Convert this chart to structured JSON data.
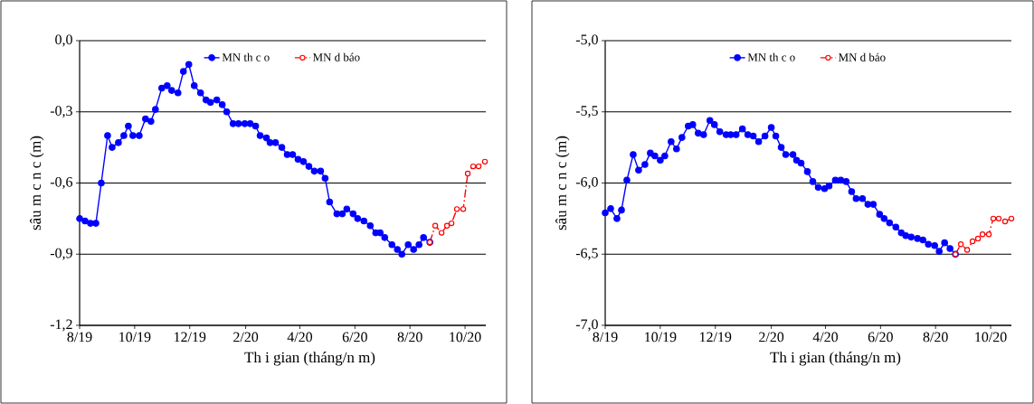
{
  "chart_data": [
    {
      "type": "line",
      "xlabel": "Th i gian (tháng/n m)",
      "ylabel": "sâu m c n c (m)",
      "xlim": [
        "2019-08-01",
        "2020-10-24"
      ],
      "ylim": [
        -1.2,
        0
      ],
      "xticks": [
        {
          "value": "2019-08-01",
          "label": "8/19"
        },
        {
          "value": "2019-10-01",
          "label": "10/19"
        },
        {
          "value": "2019-12-01",
          "label": "12/19"
        },
        {
          "value": "2020-02-01",
          "label": "2/20"
        },
        {
          "value": "2020-04-01",
          "label": "4/20"
        },
        {
          "value": "2020-06-01",
          "label": "6/20"
        },
        {
          "value": "2020-08-01",
          "label": "8/20"
        },
        {
          "value": "2020-10-01",
          "label": "10/20"
        }
      ],
      "yticks": [
        {
          "value": -1.2,
          "label": "-1,2"
        },
        {
          "value": -0.9,
          "label": "-0,9"
        },
        {
          "value": -0.6,
          "label": "-0,6"
        },
        {
          "value": -0.3,
          "label": "-0,3"
        },
        {
          "value": 0,
          "label": "0,0"
        }
      ],
      "grid": "y",
      "legend": "top",
      "marker": "circle",
      "series": [
        {
          "name": "MN th c o",
          "color": "#0000ff",
          "line_style": "solid",
          "x": [
            "2019-08-01",
            "2019-08-07",
            "2019-08-13",
            "2019-08-19",
            "2019-08-25",
            "2019-09-01",
            "2019-09-06",
            "2019-09-13",
            "2019-09-19",
            "2019-09-24",
            "2019-09-29",
            "2019-10-06",
            "2019-10-13",
            "2019-10-19",
            "2019-10-24",
            "2019-10-31",
            "2019-11-06",
            "2019-11-11",
            "2019-11-18",
            "2019-11-24",
            "2019-11-30",
            "2019-12-06",
            "2019-12-13",
            "2019-12-19",
            "2019-12-24",
            "2019-12-31",
            "2020-01-06",
            "2020-01-11",
            "2020-01-18",
            "2020-01-24",
            "2020-01-31",
            "2020-02-06",
            "2020-02-12",
            "2020-02-17",
            "2020-02-24",
            "2020-02-28",
            "2020-03-05",
            "2020-03-12",
            "2020-03-18",
            "2020-03-24",
            "2020-03-30",
            "2020-04-05",
            "2020-04-11",
            "2020-04-17",
            "2020-04-24",
            "2020-04-29",
            "2020-05-04",
            "2020-05-12",
            "2020-05-18",
            "2020-05-23",
            "2020-05-30",
            "2020-06-04",
            "2020-06-11",
            "2020-06-18",
            "2020-06-24",
            "2020-06-29",
            "2020-07-04",
            "2020-07-12",
            "2020-07-18",
            "2020-07-23",
            "2020-07-30",
            "2020-08-05",
            "2020-08-11",
            "2020-08-16",
            "2020-08-23"
          ],
          "values": [
            -0.75,
            -0.76,
            -0.77,
            -0.77,
            -0.6,
            -0.4,
            -0.45,
            -0.43,
            -0.4,
            -0.36,
            -0.4,
            -0.4,
            -0.33,
            -0.34,
            -0.29,
            -0.2,
            -0.19,
            -0.21,
            -0.22,
            -0.13,
            -0.1,
            -0.19,
            -0.22,
            -0.25,
            -0.26,
            -0.25,
            -0.27,
            -0.3,
            -0.35,
            -0.35,
            -0.35,
            -0.35,
            -0.36,
            -0.4,
            -0.41,
            -0.43,
            -0.43,
            -0.45,
            -0.48,
            -0.48,
            -0.5,
            -0.51,
            -0.53,
            -0.55,
            -0.55,
            -0.58,
            -0.68,
            -0.73,
            -0.73,
            -0.71,
            -0.73,
            -0.75,
            -0.76,
            -0.78,
            -0.81,
            -0.81,
            -0.83,
            -0.86,
            -0.88,
            -0.9,
            -0.86,
            -0.88,
            -0.86,
            -0.83,
            -0.85
          ]
        },
        {
          "name": "MN d báo",
          "color": "#ff0000",
          "line_style": "dashed",
          "x": [
            "2020-08-23",
            "2020-08-29",
            "2020-09-05",
            "2020-09-11",
            "2020-09-16",
            "2020-09-22",
            "2020-09-29",
            "2020-10-04",
            "2020-10-10",
            "2020-10-16",
            "2020-10-23"
          ],
          "values": [
            -0.85,
            -0.78,
            -0.81,
            -0.78,
            -0.77,
            -0.71,
            -0.71,
            -0.56,
            -0.53,
            -0.53,
            -0.51
          ]
        }
      ]
    },
    {
      "type": "line",
      "xlabel": "Th i gian (tháng/n m)",
      "ylabel": "sâu m c n c (m)",
      "xlim": [
        "2019-08-01",
        "2020-10-24"
      ],
      "ylim": [
        -7,
        -5
      ],
      "xticks": [
        {
          "value": "2019-08-01",
          "label": "8/19"
        },
        {
          "value": "2019-10-01",
          "label": "10/19"
        },
        {
          "value": "2019-12-01",
          "label": "12/19"
        },
        {
          "value": "2020-02-01",
          "label": "2/20"
        },
        {
          "value": "2020-04-01",
          "label": "4/20"
        },
        {
          "value": "2020-06-01",
          "label": "6/20"
        },
        {
          "value": "2020-08-01",
          "label": "8/20"
        },
        {
          "value": "2020-10-01",
          "label": "10/20"
        }
      ],
      "yticks": [
        {
          "value": -7,
          "label": "-7,0"
        },
        {
          "value": -6.5,
          "label": "-6,5"
        },
        {
          "value": -6,
          "label": "-6,0"
        },
        {
          "value": -5.5,
          "label": "-5,5"
        },
        {
          "value": -5,
          "label": "-5,0"
        }
      ],
      "grid": "y",
      "legend": "top",
      "marker": "circle",
      "series": [
        {
          "name": "MN th c o",
          "color": "#0000ff",
          "line_style": "solid",
          "x": [
            "2019-08-01",
            "2019-08-07",
            "2019-08-14",
            "2019-08-19",
            "2019-08-25",
            "2019-09-01",
            "2019-09-07",
            "2019-09-14",
            "2019-09-20",
            "2019-09-25",
            "2019-10-01",
            "2019-10-06",
            "2019-10-13",
            "2019-10-19",
            "2019-10-25",
            "2019-11-01",
            "2019-11-06",
            "2019-11-12",
            "2019-11-18",
            "2019-11-25",
            "2019-11-30",
            "2019-12-06",
            "2019-12-13",
            "2019-12-18",
            "2019-12-24",
            "2019-12-31",
            "2020-01-06",
            "2020-01-12",
            "2020-01-18",
            "2020-01-25",
            "2020-02-01",
            "2020-02-06",
            "2020-02-12",
            "2020-02-17",
            "2020-02-25",
            "2020-02-29",
            "2020-03-05",
            "2020-03-12",
            "2020-03-18",
            "2020-03-24",
            "2020-03-31",
            "2020-04-05",
            "2020-04-12",
            "2020-04-18",
            "2020-04-24",
            "2020-04-30",
            "2020-05-05",
            "2020-05-12",
            "2020-05-18",
            "2020-05-24",
            "2020-05-31",
            "2020-06-05",
            "2020-06-11",
            "2020-06-18",
            "2020-06-24",
            "2020-06-29",
            "2020-07-05",
            "2020-07-12",
            "2020-07-18",
            "2020-07-24",
            "2020-07-31",
            "2020-08-05",
            "2020-08-11",
            "2020-08-17",
            "2020-08-23"
          ],
          "values": [
            -6.21,
            -6.18,
            -6.25,
            -6.19,
            -5.98,
            -5.8,
            -5.91,
            -5.87,
            -5.79,
            -5.81,
            -5.84,
            -5.81,
            -5.71,
            -5.76,
            -5.68,
            -5.6,
            -5.59,
            -5.65,
            -5.66,
            -5.56,
            -5.59,
            -5.64,
            -5.66,
            -5.66,
            -5.66,
            -5.62,
            -5.66,
            -5.67,
            -5.71,
            -5.67,
            -5.61,
            -5.67,
            -5.75,
            -5.8,
            -5.8,
            -5.84,
            -5.86,
            -5.92,
            -5.99,
            -6.03,
            -6.04,
            -6.02,
            -5.98,
            -5.98,
            -5.99,
            -6.06,
            -6.11,
            -6.11,
            -6.15,
            -6.15,
            -6.22,
            -6.25,
            -6.28,
            -6.31,
            -6.35,
            -6.37,
            -6.38,
            -6.39,
            -6.4,
            -6.43,
            -6.44,
            -6.48,
            -6.42,
            -6.46,
            -6.5
          ]
        },
        {
          "name": "MN d báo",
          "color": "#ff0000",
          "line_style": "dashed",
          "x": [
            "2020-08-23",
            "2020-08-29",
            "2020-09-05",
            "2020-09-11",
            "2020-09-17",
            "2020-09-22",
            "2020-09-29",
            "2020-10-04",
            "2020-10-10",
            "2020-10-17",
            "2020-10-24"
          ],
          "values": [
            -6.5,
            -6.43,
            -6.47,
            -6.41,
            -6.39,
            -6.36,
            -6.36,
            -6.25,
            -6.25,
            -6.27,
            -6.25
          ]
        }
      ]
    }
  ]
}
